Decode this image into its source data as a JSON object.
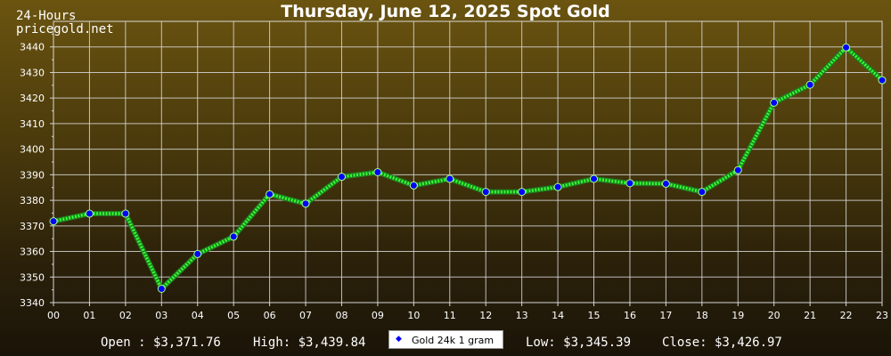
{
  "header": {
    "period": "24-Hours",
    "site": "pricegold.net",
    "title": "Thursday, June 12, 2025 Spot Gold"
  },
  "stats": {
    "open": "Open : $3,371.76",
    "high": "High: $3,439.84",
    "low": "Low: $3,345.39",
    "close": "Close: $3,426.97"
  },
  "legend": {
    "label": "Gold 24k 1 gram"
  },
  "colors": {
    "line": "#33ff33",
    "marker": "#0000ff",
    "grid": "#d8d8d8",
    "background_top": "#6b5410",
    "background_bottom": "#1a1408"
  },
  "chart_data": {
    "type": "line",
    "title": "Thursday, June 12, 2025 Spot Gold",
    "x": [
      "00",
      "01",
      "02",
      "03",
      "04",
      "05",
      "06",
      "07",
      "08",
      "09",
      "10",
      "11",
      "12",
      "13",
      "14",
      "15",
      "16",
      "17",
      "18",
      "19",
      "20",
      "21",
      "22",
      "23"
    ],
    "series": [
      {
        "name": "Gold 24k 1 gram",
        "values": [
          3371.8,
          3374.8,
          3374.8,
          3345.4,
          3359.0,
          3365.8,
          3382.4,
          3378.7,
          3389.2,
          3391.0,
          3385.8,
          3388.4,
          3383.3,
          3383.3,
          3385.2,
          3388.4,
          3386.7,
          3386.5,
          3383.3,
          3391.8,
          3418.2,
          3425.2,
          3439.8,
          3427.0
        ]
      }
    ],
    "yticks": [
      3340,
      3350,
      3360,
      3370,
      3380,
      3390,
      3400,
      3410,
      3420,
      3430,
      3440
    ],
    "ylim": [
      3340,
      3450
    ],
    "grid": true,
    "legend_position": "bottom-center"
  }
}
